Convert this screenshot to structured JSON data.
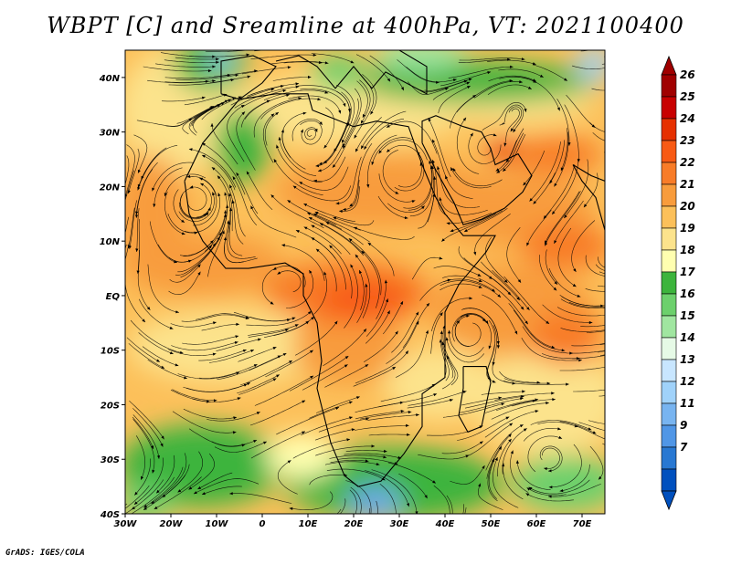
{
  "title": "WBPT [C] and Sreamline at 400hPa, VT: 2021100400",
  "credit": "GrADS: IGES/COLA",
  "map": {
    "lon_range": [
      -30,
      75
    ],
    "lat_range": [
      -40,
      45
    ],
    "lon_ticks": [
      "30W",
      "20W",
      "10W",
      "0",
      "10E",
      "20E",
      "30E",
      "40E",
      "50E",
      "60E",
      "70E"
    ],
    "lat_ticks": [
      "40N",
      "30N",
      "20N",
      "10N",
      "EQ",
      "10S",
      "20S",
      "30S",
      "40S"
    ]
  },
  "colorbar": {
    "labels": [
      "26",
      "25",
      "24",
      "23",
      "22",
      "21",
      "20",
      "19",
      "18",
      "17",
      "16",
      "15",
      "14",
      "13",
      "12",
      "11",
      "9",
      "7"
    ],
    "colors": [
      "#a00000",
      "#c80000",
      "#e63000",
      "#f85a14",
      "#f87c28",
      "#f89c3c",
      "#fcc05a",
      "#fce38c",
      "#ffffb0",
      "#3cb43c",
      "#6cd06c",
      "#a0e6a0",
      "#e6fae6",
      "#c8e6ff",
      "#a0d2fa",
      "#78b4f0",
      "#5096e6",
      "#2878d2",
      "#0050be"
    ],
    "arrow_top_color": "#a00000",
    "arrow_bottom_color": "#0050be"
  }
}
